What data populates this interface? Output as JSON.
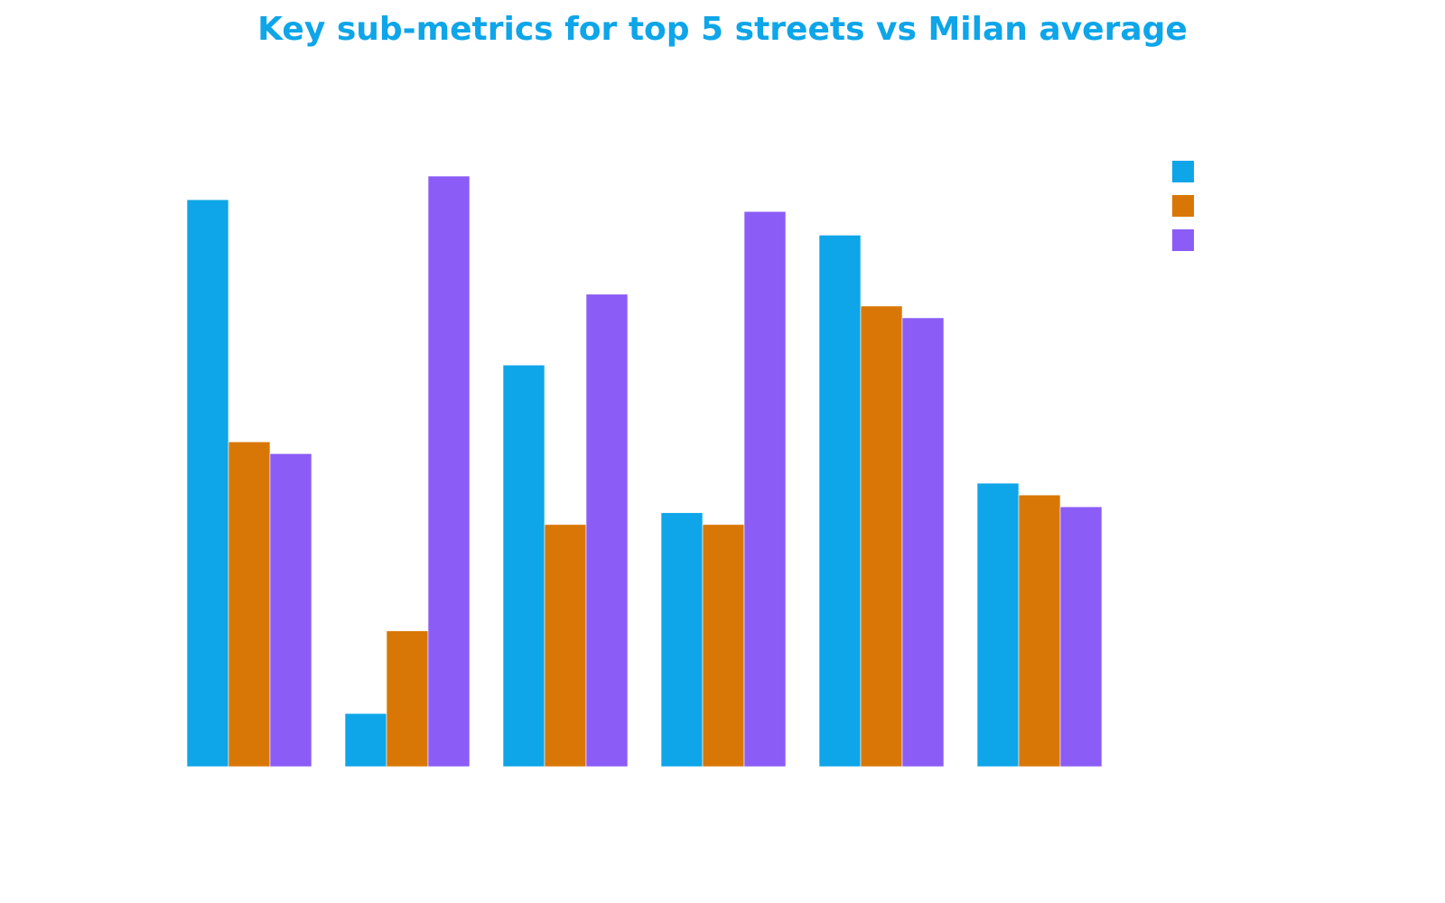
{
  "chart_data": {
    "type": "bar",
    "title": "Key sub-metrics for top 5 streets vs Milan average",
    "categories": [
      "",
      "",
      "",
      "",
      "",
      ""
    ],
    "series": [
      {
        "values": [
          0.96,
          0.09,
          0.68,
          0.43,
          0.9,
          0.48
        ]
      },
      {
        "values": [
          0.55,
          0.23,
          0.41,
          0.41,
          0.78,
          0.46
        ]
      },
      {
        "values": [
          0.53,
          1.0,
          0.8,
          0.94,
          0.76,
          0.44
        ]
      }
    ],
    "colors": [
      "#0ea5e9",
      "#d97706",
      "#8b5cf6"
    ],
    "ylim": [
      0,
      1.0
    ],
    "grid": false,
    "legend": "top-right"
  }
}
